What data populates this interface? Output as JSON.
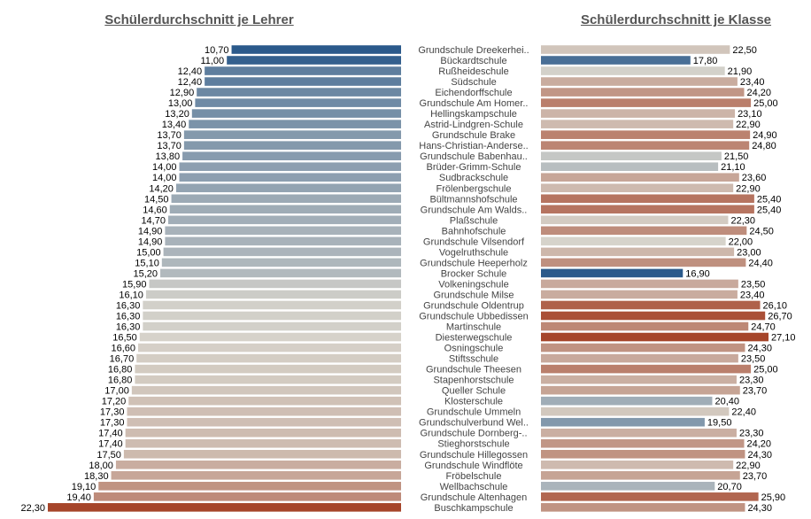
{
  "chart_data": [
    {
      "type": "bar",
      "orientation": "horizontal",
      "direction": "right-to-left",
      "title": "Schülerdurchschnitt je Lehrer",
      "categories": [
        "Grundschule Dreekerhei..",
        "Bückardtschule",
        "Rußheideschule",
        "Südschule",
        "Eichendorffschule",
        "Grundschule Am Homer..",
        "Hellingskampschule",
        "Astrid-Lindgren-Schule",
        "Grundschule Brake",
        "Hans-Christian-Anderse..",
        "Grundschule Babenhau..",
        "Brüder-Grimm-Schule",
        "Sudbrackschule",
        "Frölenbergschule",
        "Bültmannshofschule",
        "Grundschule Am Walds..",
        "Plaßschule",
        "Bahnhofschule",
        "Grundschule Vilsendorf",
        "Vogelruthschule",
        "Grundschule Heeperholz",
        "Brocker Schule",
        "Volkeningschule",
        "Grundschule Milse",
        "Grundschule Oldentrup",
        "Grundschule Ubbedissen",
        "Martinschule",
        "Diesterwegschule",
        "Osningschule",
        "Stiftsschule",
        "Grundschule Theesen",
        "Stapenhorstschule",
        "Queller Schule",
        "Klosterschule",
        "Grundschule Ummeln",
        "Grundschulverbund Wel..",
        "Grundschule Dornberg-..",
        "Stieghorstschule",
        "Grundschule Hillegossen",
        "Grundschule Windflöte",
        "Fröbelschule",
        "Wellbachschule",
        "Grundschule Altenhagen",
        "Buschkampschule"
      ],
      "values": [
        10.7,
        11.0,
        12.4,
        12.4,
        12.9,
        13.0,
        13.2,
        13.4,
        13.7,
        13.7,
        13.8,
        14.0,
        14.0,
        14.2,
        14.5,
        14.6,
        14.7,
        14.9,
        14.9,
        15.0,
        15.1,
        15.2,
        15.9,
        16.1,
        16.3,
        16.3,
        16.3,
        16.5,
        16.6,
        16.7,
        16.8,
        16.8,
        17.0,
        17.2,
        17.3,
        17.3,
        17.4,
        17.4,
        17.5,
        18.0,
        18.3,
        19.1,
        19.4,
        22.3
      ],
      "data_labels": [
        "10,70",
        "11,00",
        "12,40",
        "12,40",
        "12,90",
        "13,00",
        "13,20",
        "13,40",
        "13,70",
        "13,70",
        "13,80",
        "14,00",
        "14,00",
        "14,20",
        "14,50",
        "14,60",
        "14,70",
        "14,90",
        "14,90",
        "15,00",
        "15,10",
        "15,20",
        "15,90",
        "16,10",
        "16,30",
        "16,30",
        "16,30",
        "16,50",
        "16,60",
        "16,70",
        "16,80",
        "16,80",
        "17,00",
        "17,20",
        "17,30",
        "17,30",
        "17,40",
        "17,40",
        "17,50",
        "18,00",
        "18,30",
        "19,10",
        "19,40",
        "22,30"
      ],
      "xlim": [
        0,
        23.75
      ],
      "color_scale": {
        "low": "#2b5a8b",
        "mid": "#d6d3cb",
        "high": "#a6452a",
        "low_value": 10.7,
        "mid_value": 16.45,
        "high_value": 22.3
      }
    },
    {
      "type": "bar",
      "orientation": "horizontal",
      "title": "Schülerdurchschnitt je Klasse",
      "categories": [
        "Grundschule Dreekerhei..",
        "Bückardtschule",
        "Rußheideschule",
        "Südschule",
        "Eichendorffschule",
        "Grundschule Am Homer..",
        "Hellingskampschule",
        "Astrid-Lindgren-Schule",
        "Grundschule Brake",
        "Hans-Christian-Anderse..",
        "Grundschule Babenhau..",
        "Brüder-Grimm-Schule",
        "Sudbrackschule",
        "Frölenbergschule",
        "Bültmannshofschule",
        "Grundschule Am Walds..",
        "Plaßschule",
        "Bahnhofschule",
        "Grundschule Vilsendorf",
        "Vogelruthschule",
        "Grundschule Heeperholz",
        "Brocker Schule",
        "Volkeningschule",
        "Grundschule Milse",
        "Grundschule Oldentrup",
        "Grundschule Ubbedissen",
        "Martinschule",
        "Diesterwegschule",
        "Osningschule",
        "Stiftsschule",
        "Grundschule Theesen",
        "Stapenhorstschule",
        "Queller Schule",
        "Klosterschule",
        "Grundschule Ummeln",
        "Grundschulverbund Wel..",
        "Grundschule Dornberg-..",
        "Stieghorstschule",
        "Grundschule Hillegossen",
        "Grundschule Windflöte",
        "Fröbelschule",
        "Wellbachschule",
        "Grundschule Altenhagen",
        "Buschkampschule"
      ],
      "values": [
        22.5,
        17.8,
        21.9,
        23.4,
        24.2,
        25.0,
        23.1,
        22.9,
        24.9,
        24.8,
        21.5,
        21.1,
        23.6,
        22.9,
        25.4,
        25.4,
        22.3,
        24.5,
        22.0,
        23.0,
        24.4,
        16.9,
        23.5,
        23.4,
        26.1,
        26.7,
        24.7,
        27.1,
        24.3,
        23.5,
        25.0,
        23.3,
        23.7,
        20.4,
        22.4,
        19.5,
        23.3,
        24.2,
        24.3,
        22.9,
        23.7,
        20.7,
        25.9,
        24.3
      ],
      "data_labels": [
        "22,50",
        "17,80",
        "21,90",
        "23,40",
        "24,20",
        "25,00",
        "23,10",
        "22,90",
        "24,90",
        "24,80",
        "21,50",
        "21,10",
        "23,60",
        "22,90",
        "25,40",
        "25,40",
        "22,30",
        "24,50",
        "22,00",
        "23,00",
        "24,40",
        "16,90",
        "23,50",
        "23,40",
        "26,10",
        "26,70",
        "24,70",
        "27,10",
        "24,30",
        "23,50",
        "25,00",
        "23,30",
        "23,70",
        "20,40",
        "22,40",
        "19,50",
        "23,30",
        "24,20",
        "24,30",
        "22,90",
        "23,70",
        "20,70",
        "25,90",
        "24,30"
      ],
      "xlim": [
        0,
        27.1
      ],
      "color_scale": {
        "low": "#2b5a8b",
        "mid": "#d6d3cb",
        "high": "#a6452a",
        "low_value": 16.9,
        "mid_value": 22.0,
        "high_value": 27.1
      }
    }
  ]
}
